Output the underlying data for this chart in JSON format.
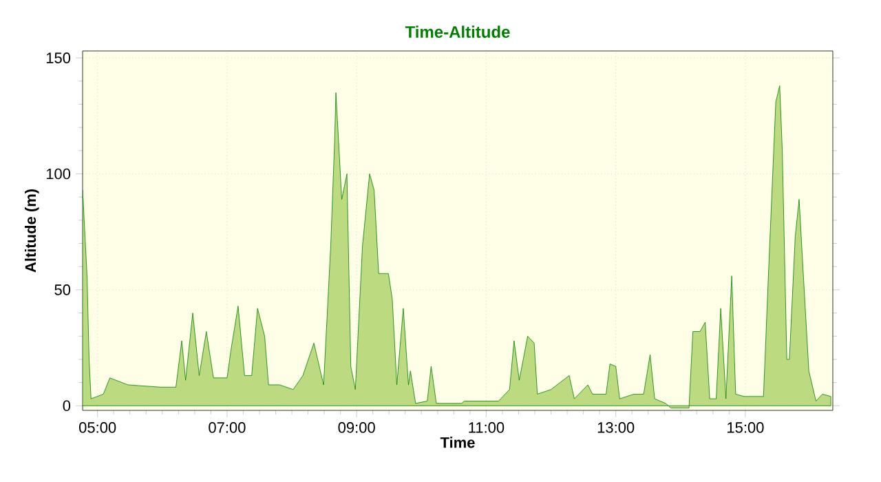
{
  "chart_data": {
    "type": "area",
    "title": "Time-Altitude",
    "xlabel": "Time",
    "ylabel": "Altitude (m)",
    "x": [
      4.77,
      4.78,
      4.84,
      4.87,
      4.9,
      5.09,
      5.19,
      5.47,
      5.98,
      6.21,
      6.3,
      6.36,
      6.47,
      6.57,
      6.68,
      6.79,
      7.0,
      7.06,
      7.17,
      7.27,
      7.38,
      7.47,
      7.58,
      7.64,
      7.81,
      8.02,
      8.17,
      8.34,
      8.49,
      8.6,
      8.66,
      8.68,
      8.77,
      8.85,
      8.91,
      8.98,
      9.09,
      9.2,
      9.27,
      9.34,
      9.49,
      9.55,
      9.62,
      9.72,
      9.8,
      9.83,
      9.91,
      10.09,
      10.15,
      10.23,
      10.51,
      10.62,
      10.66,
      11.19,
      11.36,
      11.43,
      11.51,
      11.64,
      11.74,
      11.79,
      12.0,
      12.28,
      12.36,
      12.43,
      12.57,
      12.64,
      12.85,
      12.91,
      13.0,
      13.06,
      13.28,
      13.43,
      13.53,
      13.6,
      13.77,
      13.85,
      14.13,
      14.19,
      14.3,
      14.38,
      14.45,
      14.55,
      14.62,
      14.7,
      14.79,
      14.85,
      14.98,
      15.28,
      15.36,
      15.47,
      15.53,
      15.57,
      15.64,
      15.68,
      15.77,
      15.83,
      15.9,
      15.98,
      16.09,
      16.19,
      16.32
    ],
    "series": [
      {
        "color": "#bcdb80",
        "values": [
          93,
          88,
          55,
          20,
          3,
          5,
          12,
          9,
          8,
          8,
          28,
          11,
          40,
          13,
          32,
          12,
          12,
          24,
          43,
          13,
          13,
          42,
          30,
          9,
          9,
          7,
          13,
          27,
          9,
          69,
          114,
          135,
          89,
          100,
          17,
          7,
          69,
          100,
          93,
          57,
          57,
          46,
          9,
          42,
          9,
          15,
          1,
          2,
          17,
          1,
          1,
          1,
          2,
          2,
          7,
          28,
          11,
          30,
          27,
          5,
          7,
          13,
          3,
          5,
          9,
          5,
          5,
          18,
          17,
          3,
          5,
          5,
          22,
          3,
          1,
          -1,
          -1,
          32,
          32,
          36,
          3,
          3,
          42,
          3,
          56,
          5,
          4,
          4,
          59,
          131,
          138,
          110,
          20,
          20,
          73,
          89,
          54,
          15,
          2,
          5,
          4
        ]
      }
    ],
    "xlim": [
      4.77,
      16.35
    ],
    "ylim": [
      -2,
      153
    ],
    "xticks": [
      {
        "value": 5,
        "label": "05:00"
      },
      {
        "value": 7,
        "label": "07:00"
      },
      {
        "value": 9,
        "label": "09:00"
      },
      {
        "value": 11,
        "label": "11:00"
      },
      {
        "value": 13,
        "label": "13:00"
      },
      {
        "value": 15,
        "label": "15:00"
      }
    ],
    "yticks": [
      0,
      50,
      100,
      150
    ],
    "grid": true
  }
}
